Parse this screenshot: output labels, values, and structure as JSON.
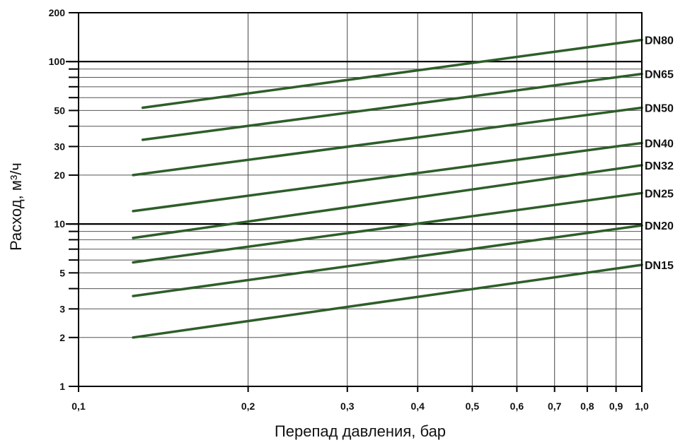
{
  "chart_data": {
    "type": "line",
    "xlabel": "Перепад давления, бар",
    "ylabel": "Расход, м³/ч",
    "xscale": "log",
    "yscale": "log",
    "xlim": [
      0.1,
      1.0
    ],
    "ylim": [
      1,
      200
    ],
    "x_ticks": [
      {
        "value": 0.1,
        "label": "0,1"
      },
      {
        "value": 0.2,
        "label": "0,2"
      },
      {
        "value": 0.3,
        "label": "0,3"
      },
      {
        "value": 0.4,
        "label": "0,4"
      },
      {
        "value": 0.5,
        "label": "0,5"
      },
      {
        "value": 0.6,
        "label": "0,6"
      },
      {
        "value": 0.7,
        "label": "0,7"
      },
      {
        "value": 0.8,
        "label": "0,8"
      },
      {
        "value": 0.9,
        "label": "0,9"
      },
      {
        "value": 1.0,
        "label": "1,0"
      }
    ],
    "y_ticks": [
      {
        "value": 1,
        "label": "1"
      },
      {
        "value": 2,
        "label": "2"
      },
      {
        "value": 3,
        "label": "3"
      },
      {
        "value": 5,
        "label": "5"
      },
      {
        "value": 10,
        "label": "10"
      },
      {
        "value": 20,
        "label": "20"
      },
      {
        "value": 30,
        "label": "30"
      },
      {
        "value": 50,
        "label": "50"
      },
      {
        "value": 100,
        "label": "100"
      },
      {
        "value": 200,
        "label": "200"
      }
    ],
    "y_minor_gridlines": [
      4,
      6,
      7,
      8,
      9,
      40,
      60,
      70,
      80,
      90
    ],
    "y_major_gridlines": [
      10,
      100
    ],
    "grid": true,
    "line_color": "#2e5e2a",
    "series": [
      {
        "name": "DN80",
        "x": [
          0.13,
          1.0
        ],
        "y": [
          52,
          136
        ]
      },
      {
        "name": "DN65",
        "x": [
          0.13,
          1.0
        ],
        "y": [
          33,
          84
        ]
      },
      {
        "name": "DN50",
        "x": [
          0.125,
          1.0
        ],
        "y": [
          20,
          52
        ]
      },
      {
        "name": "DN40",
        "x": [
          0.125,
          1.0
        ],
        "y": [
          12,
          31.5
        ]
      },
      {
        "name": "DN32",
        "x": [
          0.125,
          1.0
        ],
        "y": [
          8.2,
          23
        ]
      },
      {
        "name": "DN25",
        "x": [
          0.125,
          1.0
        ],
        "y": [
          5.8,
          15.5
        ]
      },
      {
        "name": "DN20",
        "x": [
          0.125,
          1.0
        ],
        "y": [
          3.6,
          9.8
        ]
      },
      {
        "name": "DN15",
        "x": [
          0.125,
          1.0
        ],
        "y": [
          2.0,
          5.6
        ]
      }
    ]
  }
}
